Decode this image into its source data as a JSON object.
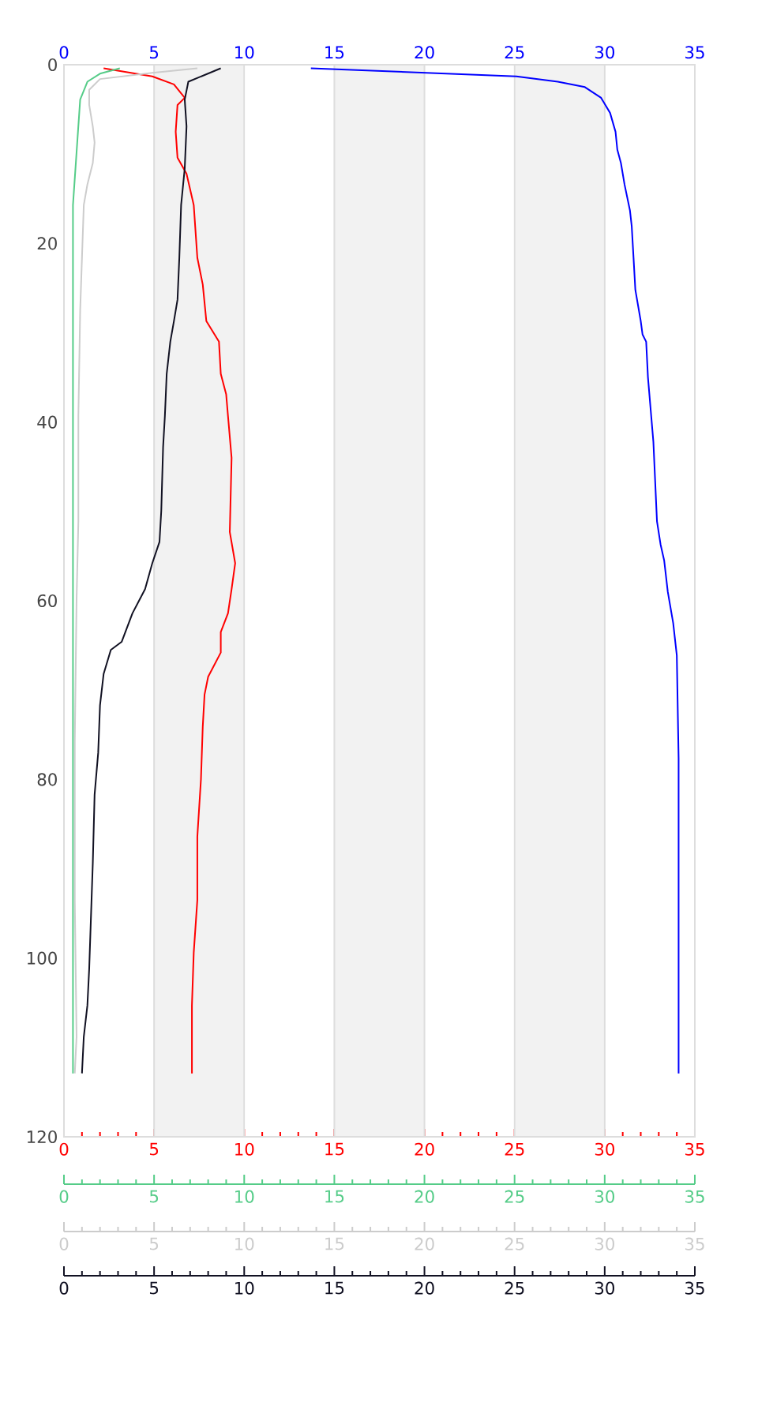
{
  "chart_data": [
    {
      "type": "line",
      "ylim": [
        120,
        0
      ],
      "yticks": [
        0,
        20,
        40,
        60,
        80,
        100,
        120
      ],
      "xlim": [
        0,
        35
      ],
      "xticks": [
        0,
        5,
        10,
        15,
        20,
        25,
        30,
        35
      ],
      "x2lim": [
        0,
        35
      ],
      "x2ticks": [
        0,
        5,
        10,
        15,
        20,
        25,
        30,
        35
      ],
      "bands": [
        {
          "axis": "x",
          "from": 5,
          "to": 10,
          "color": "#f2f2f2"
        },
        {
          "axis": "x",
          "from": 15,
          "to": 20,
          "color": "#f2f2f2"
        },
        {
          "axis": "x",
          "from": 25,
          "to": 30,
          "color": "#f2f2f2"
        }
      ],
      "series": [
        {
          "color": "#ff0000",
          "x": [
            2.2,
            4.9,
            6.1,
            6.7,
            6.3,
            6.2,
            6.3,
            6.8,
            7.2,
            7.4,
            7.7,
            7.9,
            8.6,
            8.7,
            9.0,
            9.1,
            9.3,
            9.2,
            9.5,
            9.3,
            9.1,
            8.7,
            8.7,
            8.0,
            7.8,
            7.7,
            7.6,
            7.4,
            7.4,
            7.2,
            7.1,
            7.1
          ],
          "values": [
            0.4,
            1.3,
            2.2,
            3.7,
            4.5,
            7.5,
            10.4,
            12.2,
            15.7,
            21.6,
            24.6,
            28.7,
            31.0,
            34.6,
            36.9,
            39.3,
            44.0,
            52.3,
            55.8,
            58.7,
            61.4,
            63.5,
            65.8,
            68.5,
            70.5,
            74.1,
            80.0,
            86.4,
            93.5,
            99.4,
            105.3,
            112.9
          ]
        },
        {
          "axis": "x2",
          "color": "#0000ff",
          "x": [
            13.7,
            25.1,
            27.4,
            28.9,
            29.8,
            30.3,
            30.6,
            30.7,
            30.9,
            31.1,
            31.4,
            31.5,
            31.6,
            31.7,
            32.0,
            32.1,
            32.3,
            32.4,
            32.7,
            32.9,
            33.1,
            33.3,
            33.5,
            33.8,
            34.0,
            34.1,
            34.1
          ],
          "values": [
            0.4,
            1.3,
            1.9,
            2.5,
            3.7,
            5.4,
            7.5,
            9.5,
            11.0,
            13.4,
            16.3,
            18.1,
            21.6,
            25.2,
            28.7,
            30.2,
            31.0,
            35.0,
            42.2,
            51.1,
            53.7,
            55.5,
            59.0,
            62.5,
            66.1,
            77.6,
            112.9
          ]
        }
      ]
    },
    {
      "type": "line",
      "tick_labels": "x",
      "ylim": [
        120,
        0
      ],
      "xlim": [
        0,
        35
      ],
      "xticks": [
        0,
        5,
        10,
        15,
        20,
        25,
        30,
        35
      ],
      "series": [
        {
          "color": "#55cc88",
          "x": [
            3.1,
            2.0,
            1.3,
            0.9,
            0.7,
            0.5,
            0.5,
            0.5,
            0.5,
            0.5,
            0.5
          ],
          "values": [
            0.4,
            1.0,
            1.9,
            3.9,
            9.8,
            15.7,
            27.5,
            39.3,
            57.0,
            90.0,
            112.9
          ]
        }
      ]
    },
    {
      "type": "line",
      "tick_labels": "x",
      "ylim": [
        120,
        0
      ],
      "xlim": [
        0,
        35
      ],
      "xticks": [
        0,
        5,
        10,
        15,
        20,
        25,
        30,
        35
      ],
      "series": [
        {
          "color": "#cccccc",
          "x": [
            7.4,
            4.9,
            2.0,
            1.4,
            1.4,
            1.6,
            1.7,
            1.6,
            1.3,
            1.1,
            1.0,
            0.9,
            0.8,
            0.8,
            0.7,
            0.6,
            0.6,
            0.7,
            0.6
          ],
          "values": [
            0.4,
            0.9,
            1.6,
            2.8,
            4.5,
            6.9,
            8.7,
            11.0,
            13.4,
            15.7,
            21.6,
            27.5,
            39.3,
            51.1,
            59.9,
            75.8,
            93.5,
            108.8,
            112.9
          ]
        }
      ]
    },
    {
      "type": "line",
      "tick_labels": "x",
      "ylim": [
        120,
        0
      ],
      "xlim": [
        0,
        35
      ],
      "xticks": [
        0,
        5,
        10,
        15,
        20,
        25,
        30,
        35
      ],
      "series": [
        {
          "color": "#111122",
          "x": [
            8.7,
            6.9,
            6.7,
            6.8,
            6.7,
            6.5,
            6.4,
            6.3,
            6.1,
            5.9,
            5.7,
            5.6,
            5.5,
            5.4,
            5.3,
            4.9,
            4.5,
            3.8,
            3.2,
            2.6,
            2.2,
            2.0,
            1.9,
            1.7,
            1.6,
            1.5,
            1.4,
            1.3,
            1.1,
            1.0
          ],
          "values": [
            0.4,
            1.9,
            3.9,
            6.9,
            11.6,
            15.7,
            21.6,
            26.3,
            28.7,
            31.0,
            34.6,
            39.3,
            42.8,
            49.9,
            53.4,
            55.8,
            58.7,
            61.4,
            64.6,
            65.5,
            68.2,
            71.7,
            77.0,
            81.7,
            89.4,
            95.3,
            101.2,
            105.3,
            108.8,
            112.9
          ]
        }
      ]
    }
  ]
}
